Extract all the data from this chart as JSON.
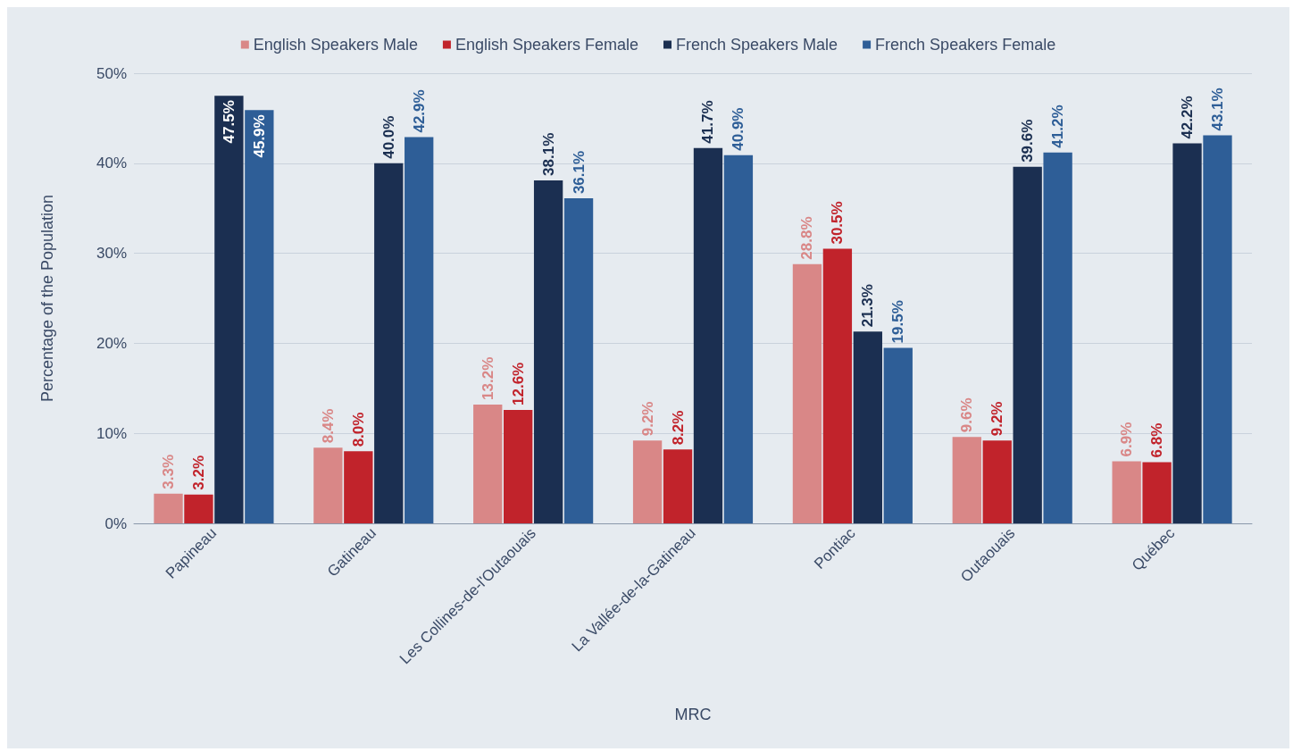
{
  "chart_data": {
    "type": "bar",
    "xlabel": "MRC",
    "ylabel": "Percentage of the Population",
    "categories": [
      "Papineau",
      "Gatineau",
      "Les Collines-de-l'Outaouais",
      "La Vallée-de-la-Gatineau",
      "Pontiac",
      "Outaouais",
      "Québec"
    ],
    "series": [
      {
        "name": "English Speakers Male",
        "color": "#d98787",
        "values": [
          3.3,
          8.4,
          13.2,
          9.2,
          28.8,
          9.6,
          6.9
        ],
        "value_labels": [
          "3.3%",
          "8.4%",
          "13.2%",
          "9.2%",
          "28.8%",
          "9.6%",
          "6.9%"
        ]
      },
      {
        "name": "English Speakers Female",
        "color": "#c1232b",
        "values": [
          3.2,
          8.0,
          12.6,
          8.2,
          30.5,
          9.2,
          6.8
        ],
        "value_labels": [
          "3.2%",
          "8.0%",
          "12.6%",
          "8.2%",
          "30.5%",
          "9.2%",
          "6.8%"
        ]
      },
      {
        "name": "French Speakers Male",
        "color": "#1b2f51",
        "values": [
          47.5,
          40.0,
          38.1,
          41.7,
          21.3,
          39.6,
          42.2
        ],
        "value_labels": [
          "47.5%",
          "40.0%",
          "38.1%",
          "41.7%",
          "21.3%",
          "39.6%",
          "42.2%"
        ]
      },
      {
        "name": "French Speakers Female",
        "color": "#2e5e97",
        "values": [
          45.9,
          42.9,
          36.1,
          40.9,
          19.5,
          41.2,
          43.1
        ],
        "value_labels": [
          "45.9%",
          "42.9%",
          "36.1%",
          "40.9%",
          "19.5%",
          "41.2%",
          "43.1%"
        ]
      }
    ],
    "ylim": [
      0,
      50
    ],
    "yticks": [
      {
        "value": 0,
        "label": "0%"
      },
      {
        "value": 10,
        "label": "10%"
      },
      {
        "value": 20,
        "label": "20%"
      },
      {
        "value": 30,
        "label": "30%"
      },
      {
        "value": 40,
        "label": "40%"
      },
      {
        "value": 50,
        "label": "50%"
      }
    ],
    "grid": "y",
    "legend": "top"
  }
}
